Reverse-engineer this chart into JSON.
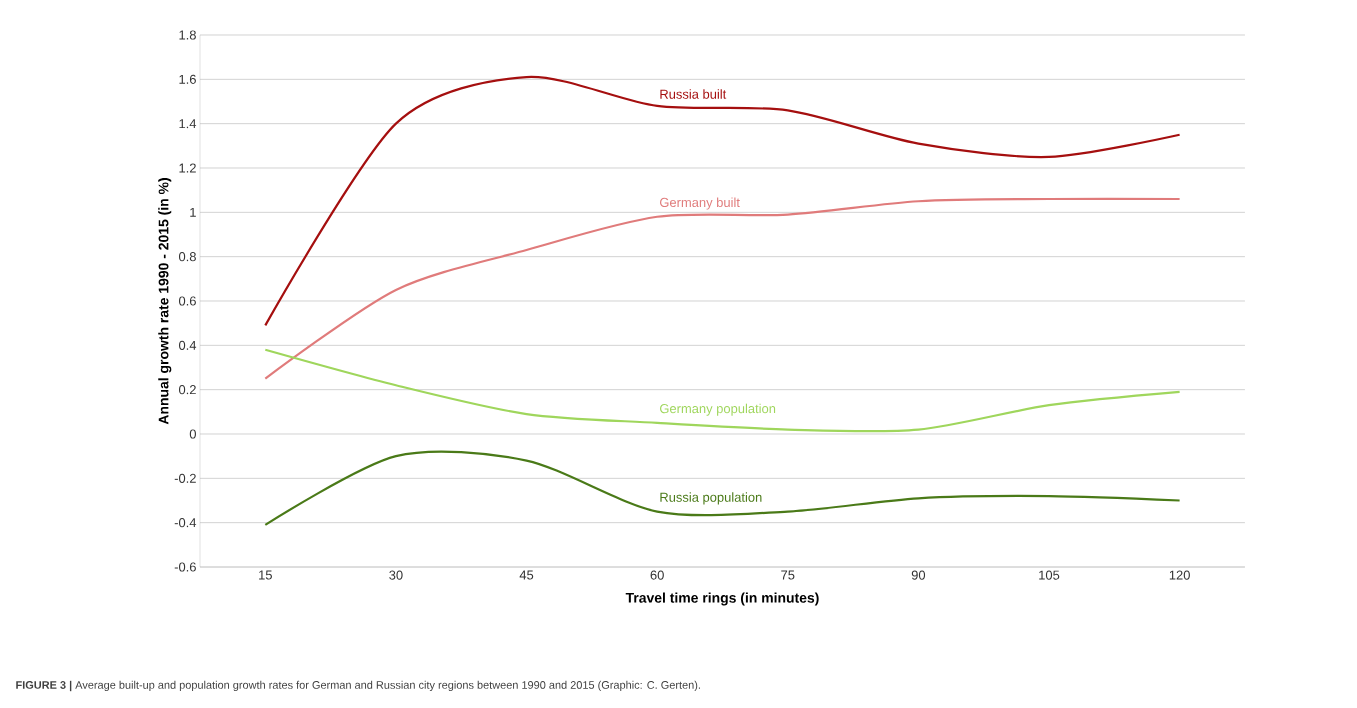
{
  "chart_data": {
    "type": "line",
    "xlabel": "Travel time rings  (in minutes)",
    "ylabel": "Annual growth rate 1990 - 2015 (in %)",
    "categories": [
      "15",
      "30",
      "45",
      "60",
      "75",
      "90",
      "105",
      "120"
    ],
    "series": [
      {
        "name": "Russia built",
        "color": "#a50f0f",
        "values": [
          0.49,
          1.4,
          1.61,
          1.48,
          1.46,
          1.31,
          1.25,
          1.35
        ]
      },
      {
        "name": "Germany built",
        "color": "#e07b7b",
        "values": [
          0.25,
          0.65,
          0.83,
          0.98,
          0.99,
          1.05,
          1.06,
          1.06
        ]
      },
      {
        "name": "Germany population",
        "color": "#9fd65c",
        "values": [
          0.38,
          0.22,
          0.09,
          0.05,
          0.02,
          0.02,
          0.13,
          0.19
        ]
      },
      {
        "name": "Russia population",
        "color": "#4a7a18",
        "values": [
          -0.41,
          -0.1,
          -0.12,
          -0.35,
          -0.35,
          -0.29,
          -0.28,
          -0.3
        ]
      }
    ],
    "ylim": [
      -0.6,
      1.8
    ],
    "yticks": [
      -0.6,
      -0.4,
      -0.2,
      0,
      0.2,
      0.4,
      0.6,
      0.8,
      1,
      1.2,
      1.4,
      1.6,
      1.8
    ],
    "grid": "y",
    "marker": "none",
    "line_style": "solid",
    "annotations": [
      "**FIGURE 3 |** Average built-up and population growth rates for German and Russian city regions between 1990 and 2015 (Graphic: C. Gerten)."
    ]
  }
}
